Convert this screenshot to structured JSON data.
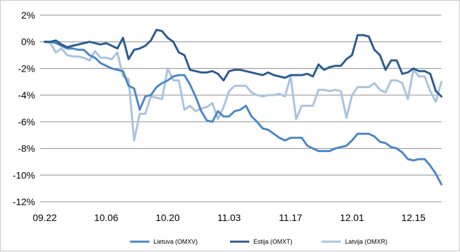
{
  "chart_data": {
    "type": "line",
    "title": "",
    "xlabel": "",
    "ylabel": "",
    "ylim": [
      -12,
      2
    ],
    "y_ticks": [
      2,
      0,
      -2,
      -4,
      -6,
      -8,
      -10,
      -12
    ],
    "y_tick_labels": [
      "2%",
      "0%",
      "-2%",
      "-4%",
      "-6%",
      "-8%",
      "-10%",
      "-12%"
    ],
    "x_ticks": [
      {
        "index": 0,
        "label": "09.22"
      },
      {
        "index": 11,
        "label": "10.06"
      },
      {
        "index": 22,
        "label": "10.20"
      },
      {
        "index": 33,
        "label": "11.03"
      },
      {
        "index": 44,
        "label": "11.17"
      },
      {
        "index": 55,
        "label": "12.01"
      },
      {
        "index": 66,
        "label": "12.15"
      }
    ],
    "n_points": 72,
    "grid": "horizontal",
    "legend_position": "bottom",
    "series": [
      {
        "name": "Lietuva (OMXV)",
        "color": "#4a86c8",
        "values": [
          0,
          0,
          -0.1,
          -0.3,
          -0.5,
          -0.5,
          -0.6,
          -0.6,
          -1.0,
          -1.2,
          -1.6,
          -1.8,
          -2.0,
          -2.1,
          -2.2,
          -3.3,
          -3.5,
          -5.1,
          -4.1,
          -4.0,
          -3.4,
          -3.1,
          -2.9,
          -2.6,
          -2.5,
          -2.5,
          -3.2,
          -4.1,
          -5.2,
          -5.9,
          -6.0,
          -5.2,
          -5.6,
          -5.6,
          -5.2,
          -5.1,
          -4.8,
          -5.6,
          -6.0,
          -6.5,
          -6.6,
          -6.9,
          -7.2,
          -7.4,
          -7.2,
          -7.2,
          -7.2,
          -7.8,
          -8.0,
          -8.2,
          -8.2,
          -8.2,
          -8.0,
          -7.9,
          -7.8,
          -7.4,
          -6.9,
          -6.9,
          -6.9,
          -7.1,
          -7.5,
          -7.6,
          -7.9,
          -8.0,
          -8.3,
          -8.8,
          -8.9,
          -8.8,
          -8.8,
          -9.3,
          -9.9,
          -10.7
        ]
      },
      {
        "name": "Estija (OMXT)",
        "color": "#2b5a8f",
        "values": [
          0,
          0,
          0.1,
          -0.2,
          -0.4,
          -0.3,
          -0.2,
          -0.1,
          0.0,
          -0.1,
          -0.2,
          -0.1,
          -0.3,
          -0.5,
          0.3,
          -1.3,
          -0.6,
          -0.5,
          -0.3,
          0.1,
          0.9,
          0.8,
          0.3,
          0.0,
          -0.8,
          -1.0,
          -2.1,
          -2.2,
          -2.3,
          -2.3,
          -2.2,
          -2.4,
          -2.9,
          -2.2,
          -2.1,
          -2.1,
          -2.2,
          -2.3,
          -2.4,
          -2.5,
          -2.3,
          -2.5,
          -2.6,
          -2.7,
          -2.5,
          -2.5,
          -2.5,
          -2.4,
          -2.6,
          -1.7,
          -2.1,
          -1.9,
          -1.8,
          -1.8,
          -1.3,
          -1.0,
          0.5,
          0.5,
          0.4,
          -0.6,
          -1.0,
          -2.1,
          -1.4,
          -1.4,
          -2.4,
          -2.3,
          -2.0,
          -2.2,
          -2.2,
          -2.4,
          -3.7,
          -4.1
        ]
      },
      {
        "name": "Latvija (OMXR)",
        "color": "#a9c3e0",
        "values": [
          0,
          -0.1,
          -0.8,
          -0.5,
          -1.0,
          -1.1,
          -1.1,
          -1.2,
          -1.4,
          -0.7,
          -1.2,
          -1.2,
          -1.3,
          -0.8,
          -2.6,
          -2.8,
          -7.4,
          -5.4,
          -5.4,
          -4.1,
          -4.2,
          -4.3,
          -2.0,
          -2.9,
          -2.9,
          -5.1,
          -4.8,
          -5.2,
          -5.0,
          -4.9,
          -4.6,
          -5.8,
          -4.9,
          -3.7,
          -3.3,
          -3.3,
          -3.3,
          -3.8,
          -4.0,
          -4.1,
          -4.0,
          -4.0,
          -3.9,
          -4.1,
          -2.6,
          -5.8,
          -4.8,
          -4.8,
          -4.8,
          -3.6,
          -3.6,
          -3.7,
          -3.6,
          -3.7,
          -5.7,
          -4.0,
          -3.4,
          -3.4,
          -3.4,
          -3.1,
          -3.6,
          -3.8,
          -2.9,
          -2.9,
          -3.1,
          -4.3,
          -2.1,
          -2.6,
          -2.6,
          -3.7,
          -4.5,
          -3.0
        ]
      }
    ]
  }
}
